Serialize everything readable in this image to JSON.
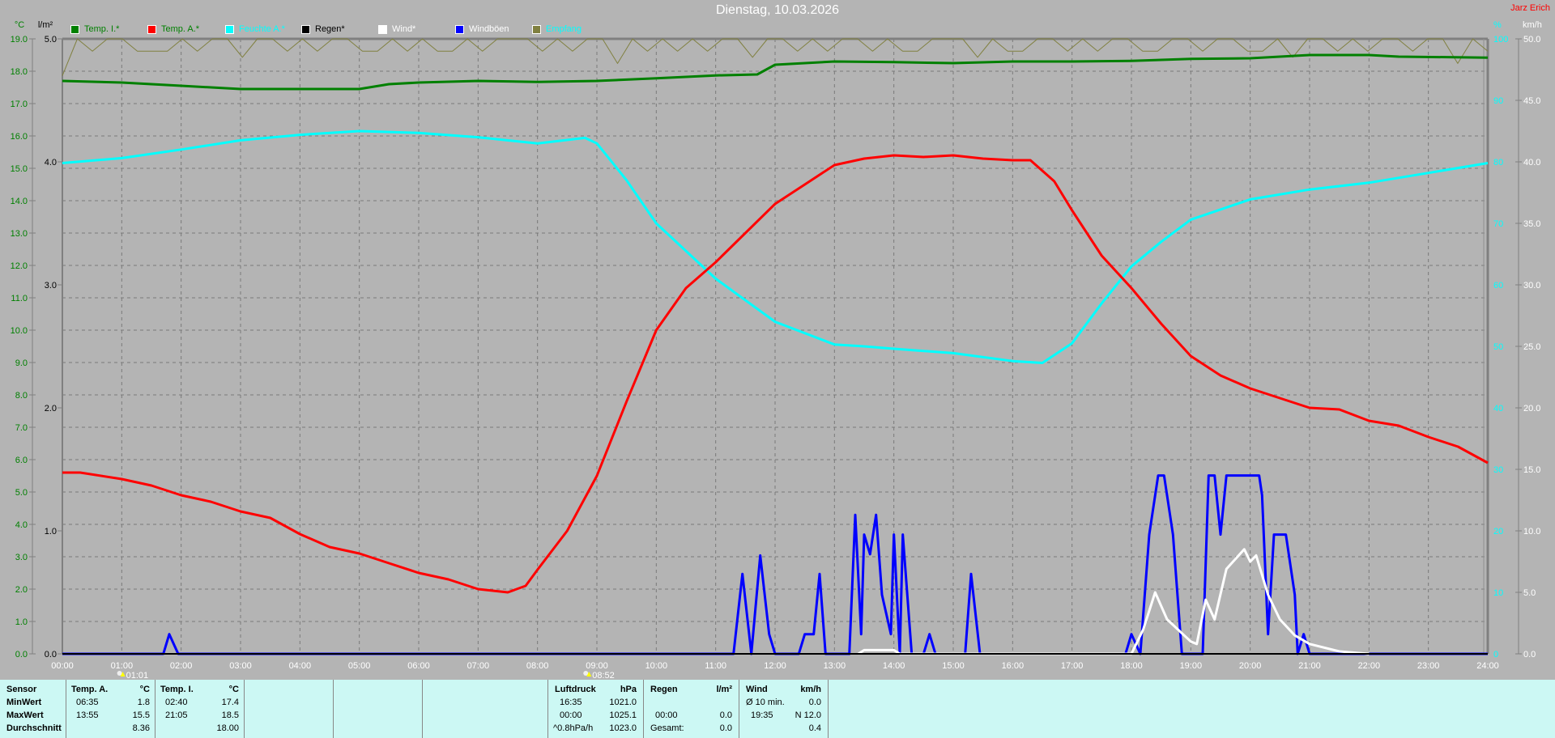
{
  "header": {
    "title": "Dienstag, 10.03.2026",
    "owner": "Jarz Erich"
  },
  "legend": [
    {
      "label": "Temp. I.*",
      "color": "#008000",
      "text_color": "#008000"
    },
    {
      "label": "Temp. A.*",
      "color": "#ff0000",
      "text_color": "#008000"
    },
    {
      "label": "Feuchte A.*",
      "color": "#00ffff",
      "text_color": "#00ffff"
    },
    {
      "label": "Regen*",
      "color": "#000000",
      "text_color": "#000000"
    },
    {
      "label": "Wind*",
      "color": "#ffffff",
      "text_color": "#ffffff"
    },
    {
      "label": "Windböen",
      "color": "#0000ff",
      "text_color": "#ffffff"
    },
    {
      "label": "Empfang",
      "color": "#808040",
      "text_color": "#00ffff"
    }
  ],
  "chart_data": {
    "type": "line",
    "grid": true,
    "x_axis": {
      "range": [
        0,
        24
      ],
      "ticks": [
        "00:00",
        "01:00",
        "02:00",
        "03:00",
        "04:00",
        "05:00",
        "06:00",
        "07:00",
        "08:00",
        "09:00",
        "10:00",
        "11:00",
        "12:00",
        "13:00",
        "14:00",
        "15:00",
        "16:00",
        "17:00",
        "18:00",
        "19:00",
        "20:00",
        "21:00",
        "22:00",
        "23:00",
        "24:00"
      ]
    },
    "axes": {
      "temp": {
        "unit": "°C",
        "range": [
          0,
          19
        ],
        "ticks": [
          "0.0",
          "1.0",
          "2.0",
          "3.0",
          "4.0",
          "5.0",
          "6.0",
          "7.0",
          "8.0",
          "9.0",
          "10.0",
          "11.0",
          "12.0",
          "13.0",
          "14.0",
          "15.0",
          "16.0",
          "17.0",
          "18.0",
          "19.0"
        ]
      },
      "rain": {
        "unit": "l/m²",
        "range": [
          0,
          5
        ],
        "ticks": [
          "0.0",
          "1.0",
          "2.0",
          "3.0",
          "4.0",
          "5.0"
        ]
      },
      "humidity": {
        "unit": "%",
        "range": [
          0,
          100
        ],
        "ticks": [
          "0",
          "10",
          "20",
          "30",
          "40",
          "50",
          "60",
          "70",
          "80",
          "90",
          "100"
        ]
      },
      "wind": {
        "unit": "km/h",
        "range": [
          0,
          50
        ],
        "ticks": [
          "0.0",
          "5.0",
          "10.0",
          "15.0",
          "20.0",
          "25.0",
          "30.0",
          "35.0",
          "40.0",
          "45.0",
          "50.0"
        ]
      }
    },
    "markers": [
      {
        "label": "01:01",
        "time": 1.017
      },
      {
        "label": "08:52",
        "time": 8.867
      }
    ],
    "series": [
      {
        "name": "Temp. I.*",
        "axis": "temp",
        "color": "#008000",
        "points": [
          [
            0,
            17.7
          ],
          [
            1,
            17.65
          ],
          [
            2,
            17.55
          ],
          [
            3,
            17.45
          ],
          [
            4,
            17.45
          ],
          [
            5,
            17.45
          ],
          [
            5.5,
            17.6
          ],
          [
            6,
            17.65
          ],
          [
            7,
            17.7
          ],
          [
            8,
            17.67
          ],
          [
            9,
            17.7
          ],
          [
            10,
            17.78
          ],
          [
            11,
            17.87
          ],
          [
            11.7,
            17.9
          ],
          [
            12,
            18.2
          ],
          [
            13,
            18.3
          ],
          [
            14,
            18.28
          ],
          [
            15,
            18.25
          ],
          [
            16,
            18.3
          ],
          [
            17,
            18.3
          ],
          [
            18,
            18.32
          ],
          [
            19,
            18.38
          ],
          [
            20,
            18.4
          ],
          [
            21,
            18.5
          ],
          [
            22,
            18.5
          ],
          [
            22.5,
            18.45
          ],
          [
            24,
            18.42
          ]
        ]
      },
      {
        "name": "Temp. A.*",
        "axis": "temp",
        "color": "#ff0000",
        "points": [
          [
            0,
            5.6
          ],
          [
            0.3,
            5.6
          ],
          [
            1,
            5.4
          ],
          [
            1.5,
            5.2
          ],
          [
            2,
            4.9
          ],
          [
            2.5,
            4.7
          ],
          [
            3,
            4.4
          ],
          [
            3.5,
            4.2
          ],
          [
            4,
            3.7
          ],
          [
            4.5,
            3.3
          ],
          [
            5,
            3.1
          ],
          [
            5.5,
            2.8
          ],
          [
            6,
            2.5
          ],
          [
            6.5,
            2.3
          ],
          [
            7,
            2.0
          ],
          [
            7.5,
            1.9
          ],
          [
            7.8,
            2.1
          ],
          [
            8,
            2.6
          ],
          [
            8.5,
            3.8
          ],
          [
            9,
            5.5
          ],
          [
            9.5,
            7.8
          ],
          [
            10,
            10.0
          ],
          [
            10.5,
            11.3
          ],
          [
            11,
            12.1
          ],
          [
            11.5,
            13.0
          ],
          [
            12,
            13.9
          ],
          [
            12.5,
            14.5
          ],
          [
            13,
            15.1
          ],
          [
            13.5,
            15.3
          ],
          [
            14,
            15.4
          ],
          [
            14.5,
            15.35
          ],
          [
            15,
            15.4
          ],
          [
            15.5,
            15.3
          ],
          [
            16,
            15.25
          ],
          [
            16.3,
            15.25
          ],
          [
            16.7,
            14.6
          ],
          [
            17,
            13.7
          ],
          [
            17.5,
            12.3
          ],
          [
            18,
            11.3
          ],
          [
            18.5,
            10.2
          ],
          [
            19,
            9.2
          ],
          [
            19.5,
            8.6
          ],
          [
            20,
            8.2
          ],
          [
            20.5,
            7.9
          ],
          [
            21,
            7.6
          ],
          [
            21.5,
            7.55
          ],
          [
            22,
            7.2
          ],
          [
            22.5,
            7.05
          ],
          [
            23,
            6.7
          ],
          [
            23.5,
            6.4
          ],
          [
            24,
            5.9
          ]
        ]
      },
      {
        "name": "Feuchte A.*",
        "axis": "humidity",
        "color": "#00ffff",
        "points": [
          [
            0,
            79.8
          ],
          [
            1,
            80.6
          ],
          [
            2,
            82
          ],
          [
            3,
            83.5
          ],
          [
            4,
            84.4
          ],
          [
            5,
            85
          ],
          [
            6,
            84.7
          ],
          [
            7,
            84
          ],
          [
            8,
            83
          ],
          [
            8.8,
            83.9
          ],
          [
            9,
            83
          ],
          [
            9.5,
            77
          ],
          [
            10,
            70
          ],
          [
            11,
            61
          ],
          [
            12,
            54
          ],
          [
            13,
            50.3
          ],
          [
            13.5,
            50
          ],
          [
            14,
            49.6
          ],
          [
            15,
            48.9
          ],
          [
            16,
            47.6
          ],
          [
            16.5,
            47.3
          ],
          [
            17,
            50.5
          ],
          [
            17.5,
            57
          ],
          [
            18,
            63
          ],
          [
            18.5,
            67
          ],
          [
            19,
            70.6
          ],
          [
            20,
            73.9
          ],
          [
            21,
            75.5
          ],
          [
            22,
            76.6
          ],
          [
            23,
            78.2
          ],
          [
            24,
            79.8
          ]
        ]
      },
      {
        "name": "Regen*",
        "axis": "rain",
        "color": "#000000",
        "points": [
          [
            0,
            0
          ],
          [
            24,
            0
          ]
        ]
      },
      {
        "name": "Wind*",
        "axis": "wind",
        "color": "#ffffff",
        "points": [
          [
            13.4,
            0
          ],
          [
            13.5,
            0.3
          ],
          [
            14,
            0.3
          ],
          [
            14.1,
            0
          ],
          [
            18,
            0
          ],
          [
            18.2,
            2
          ],
          [
            18.4,
            5
          ],
          [
            18.6,
            2.8
          ],
          [
            19,
            1
          ],
          [
            19.1,
            0.8
          ],
          [
            19.25,
            4.4
          ],
          [
            19.4,
            2.8
          ],
          [
            19.6,
            6.9
          ],
          [
            19.75,
            7.7
          ],
          [
            19.9,
            8.5
          ],
          [
            20,
            7.5
          ],
          [
            20.1,
            8
          ],
          [
            20.3,
            4.8
          ],
          [
            20.5,
            2.8
          ],
          [
            20.75,
            1.5
          ],
          [
            21,
            0.8
          ],
          [
            21.5,
            0.2
          ],
          [
            22,
            0
          ]
        ]
      },
      {
        "name": "Windböen",
        "axis": "wind",
        "color": "#0000ff",
        "points": [
          [
            0,
            0
          ],
          [
            1.7,
            0
          ],
          [
            1.8,
            1.6
          ],
          [
            1.95,
            0
          ],
          [
            11.3,
            0
          ],
          [
            11.45,
            6.5
          ],
          [
            11.6,
            0
          ],
          [
            11.75,
            8
          ],
          [
            11.9,
            1.6
          ],
          [
            12,
            0
          ],
          [
            12.4,
            0
          ],
          [
            12.5,
            1.6
          ],
          [
            12.65,
            1.6
          ],
          [
            12.75,
            6.5
          ],
          [
            12.85,
            0
          ],
          [
            13.25,
            0
          ],
          [
            13.35,
            11.3
          ],
          [
            13.45,
            1.6
          ],
          [
            13.5,
            9.7
          ],
          [
            13.6,
            8.1
          ],
          [
            13.7,
            11.3
          ],
          [
            13.8,
            4.8
          ],
          [
            13.95,
            1.6
          ],
          [
            14,
            9.7
          ],
          [
            14.1,
            0
          ],
          [
            14.15,
            9.7
          ],
          [
            14.3,
            0
          ],
          [
            14.5,
            0
          ],
          [
            14.6,
            1.6
          ],
          [
            14.7,
            0
          ],
          [
            15.2,
            0
          ],
          [
            15.3,
            6.5
          ],
          [
            15.45,
            0
          ],
          [
            17.9,
            0
          ],
          [
            18,
            1.6
          ],
          [
            18.15,
            0
          ],
          [
            18.3,
            9.7
          ],
          [
            18.45,
            14.5
          ],
          [
            18.55,
            14.5
          ],
          [
            18.7,
            9.7
          ],
          [
            18.85,
            0
          ],
          [
            19.2,
            0
          ],
          [
            19.3,
            14.5
          ],
          [
            19.4,
            14.5
          ],
          [
            19.5,
            9.7
          ],
          [
            19.6,
            14.5
          ],
          [
            20.15,
            14.5
          ],
          [
            20.2,
            12.9
          ],
          [
            20.3,
            1.6
          ],
          [
            20.4,
            9.7
          ],
          [
            20.6,
            9.7
          ],
          [
            20.75,
            4.8
          ],
          [
            20.8,
            0
          ],
          [
            20.9,
            1.6
          ],
          [
            21,
            0
          ],
          [
            24,
            0
          ]
        ]
      },
      {
        "name": "Empfang",
        "axis": "humidity",
        "color": "#808040",
        "values_per_15min": [
          94,
          100,
          98,
          100,
          100,
          98,
          98,
          98,
          100,
          98,
          100,
          100,
          97,
          100,
          100,
          98,
          100,
          98,
          100,
          100,
          98,
          98,
          100,
          98,
          100,
          98,
          98,
          100,
          98,
          100,
          100,
          100,
          98,
          100,
          98,
          100,
          100,
          96,
          100,
          98,
          100,
          98,
          100,
          98,
          100,
          100,
          97,
          100,
          100,
          98,
          100,
          98,
          100,
          100,
          98,
          100,
          98,
          98,
          100,
          100,
          100,
          97,
          100,
          98,
          98,
          100,
          100,
          98,
          100,
          98,
          100,
          100,
          98,
          98,
          100,
          100,
          98,
          100,
          100,
          98,
          98,
          100,
          97,
          100,
          100,
          98,
          100,
          98,
          100,
          100,
          98,
          100,
          100,
          96,
          100,
          98
        ]
      }
    ]
  },
  "table": {
    "row_labels": [
      "Sensor",
      "MinWert",
      "MaxWert",
      "Durchschnitt"
    ],
    "temp_a": {
      "header": "Temp. A.",
      "unit": "°C",
      "min_time": "06:35",
      "min": "1.8",
      "max_time": "13:55",
      "max": "15.5",
      "avg": "8.36"
    },
    "temp_i": {
      "header": "Temp. I.",
      "unit": "°C",
      "min_time": "02:40",
      "min": "17.4",
      "max_time": "21:05",
      "max": "18.5",
      "avg": "18.00"
    },
    "pressure": {
      "header": "Luftdruck",
      "unit": "hPa",
      "min_time": "16:35",
      "min": "1021.0",
      "max_time": "00:00",
      "max": "1025.1",
      "trend": "^0.8hPa/h",
      "avg": "1023.0"
    },
    "rain": {
      "header": "Regen",
      "unit": "l/m²",
      "max_time": "00:00",
      "max": "0.0",
      "total_label": "Gesamt:",
      "total": "0.0"
    },
    "wind": {
      "header": "Wind",
      "unit": "km/h",
      "avg10_label": "Ø 10 min.",
      "avg10": "0.0",
      "max_time": "19:35",
      "max": "N 12.0",
      "avg": "0.4"
    }
  }
}
